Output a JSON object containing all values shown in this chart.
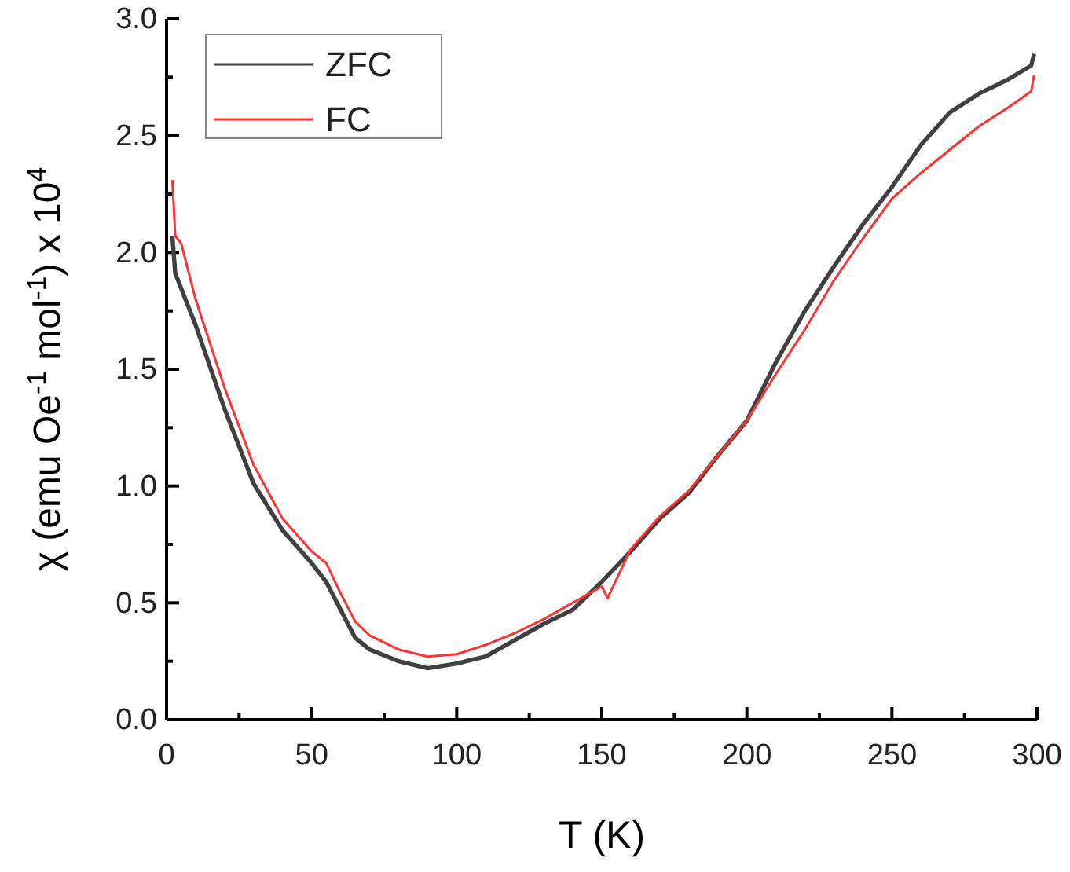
{
  "chart_data": {
    "type": "line",
    "xlabel": "T (K)",
    "ylabel": "χ (emu Oe$^{-1}$ mol$^{-1}$) x 10$^{4}$",
    "xlim": [
      0,
      300
    ],
    "ylim": [
      0,
      3
    ],
    "xticks": [
      0,
      50,
      100,
      150,
      200,
      250,
      300
    ],
    "yticks": [
      {
        "value": 0,
        "label": "0.0"
      },
      {
        "value": 0.5,
        "label": "0.5"
      },
      {
        "value": 1,
        "label": "1.0"
      },
      {
        "value": 1.5,
        "label": "1.5"
      },
      {
        "value": 2,
        "label": "2.0"
      },
      {
        "value": 2.5,
        "label": "2.5"
      },
      {
        "value": 3,
        "label": "3.0"
      }
    ],
    "grid": false,
    "legend": "top left",
    "line_style": "solid",
    "marker": "none",
    "series": [
      {
        "name": "ZFC",
        "color": "#404040",
        "x": [
          2,
          3,
          10,
          20,
          30,
          40,
          50,
          55,
          60,
          65,
          70,
          80,
          90,
          100,
          110,
          120,
          130,
          140,
          150,
          160,
          170,
          180,
          190,
          200,
          210,
          220,
          230,
          240,
          250,
          260,
          270,
          280,
          290,
          298,
          299
        ],
        "values": [
          2.07,
          1.91,
          1.69,
          1.33,
          1.01,
          0.81,
          0.67,
          0.59,
          0.47,
          0.35,
          0.3,
          0.25,
          0.22,
          0.24,
          0.27,
          0.34,
          0.41,
          0.47,
          0.59,
          0.72,
          0.86,
          0.97,
          1.13,
          1.28,
          1.53,
          1.75,
          1.94,
          2.12,
          2.28,
          2.46,
          2.6,
          2.68,
          2.74,
          2.8,
          2.85
        ]
      },
      {
        "name": "FC",
        "color": "#ff3333",
        "x": [
          2,
          3,
          5,
          10,
          20,
          30,
          40,
          50,
          55,
          60,
          65,
          70,
          80,
          90,
          100,
          110,
          120,
          130,
          140,
          150,
          152,
          160,
          170,
          180,
          190,
          200,
          210,
          220,
          230,
          240,
          250,
          260,
          270,
          280,
          290,
          298,
          299
        ],
        "values": [
          2.31,
          2.07,
          2.04,
          1.8,
          1.42,
          1.09,
          0.86,
          0.72,
          0.67,
          0.54,
          0.42,
          0.36,
          0.3,
          0.27,
          0.28,
          0.32,
          0.37,
          0.43,
          0.5,
          0.57,
          0.52,
          0.73,
          0.87,
          0.98,
          1.13,
          1.28,
          1.48,
          1.67,
          1.88,
          2.06,
          2.23,
          2.34,
          2.44,
          2.54,
          2.62,
          2.69,
          2.76
        ]
      }
    ]
  }
}
